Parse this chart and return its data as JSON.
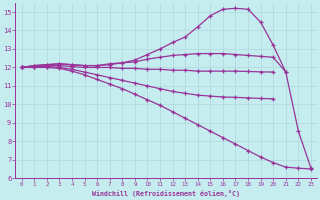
{
  "xlabel": "Windchill (Refroidissement éolien,°C)",
  "xlim": [
    -0.5,
    23.5
  ],
  "ylim": [
    6,
    15.5
  ],
  "xticks": [
    0,
    1,
    2,
    3,
    4,
    5,
    6,
    7,
    8,
    9,
    10,
    11,
    12,
    13,
    14,
    15,
    16,
    17,
    18,
    19,
    20,
    21,
    22,
    23
  ],
  "yticks": [
    6,
    7,
    8,
    9,
    10,
    11,
    12,
    13,
    14,
    15
  ],
  "background_color": "#c5edf0",
  "line_color": "#993399",
  "grid_color": "#b0d8dc",
  "lines": [
    {
      "x": [
        0,
        1,
        2,
        3,
        4,
        5,
        6,
        7,
        8,
        9,
        10,
        11,
        12,
        13,
        14,
        15,
        16,
        17,
        18,
        19,
        20,
        21,
        22,
        23
      ],
      "y": [
        12.0,
        12.1,
        12.15,
        12.2,
        12.15,
        12.1,
        12.1,
        12.15,
        12.25,
        12.4,
        12.7,
        13.0,
        13.35,
        13.65,
        14.2,
        14.8,
        15.15,
        15.2,
        15.15,
        14.45,
        13.2,
        11.75,
        8.55,
        6.55
      ]
    },
    {
      "x": [
        0,
        1,
        2,
        3,
        4,
        5,
        6,
        7,
        8,
        9,
        10,
        11,
        12,
        13,
        14,
        15,
        16,
        17,
        18,
        19,
        20,
        21
      ],
      "y": [
        12.0,
        12.1,
        12.15,
        12.2,
        12.15,
        12.1,
        12.1,
        12.2,
        12.25,
        12.3,
        12.45,
        12.55,
        12.65,
        12.7,
        12.75,
        12.75,
        12.75,
        12.7,
        12.65,
        12.6,
        12.55,
        11.75
      ]
    },
    {
      "x": [
        0,
        1,
        2,
        3,
        4,
        5,
        6,
        7,
        8,
        9,
        10,
        11,
        12,
        13,
        14,
        15,
        16,
        17,
        18,
        19,
        20
      ],
      "y": [
        12.0,
        12.05,
        12.1,
        12.1,
        12.05,
        12.0,
        12.0,
        12.0,
        11.95,
        11.95,
        11.9,
        11.9,
        11.85,
        11.85,
        11.8,
        11.8,
        11.8,
        11.8,
        11.78,
        11.76,
        11.75
      ]
    },
    {
      "x": [
        0,
        1,
        2,
        3,
        4,
        5,
        6,
        7,
        8,
        9,
        10,
        11,
        12,
        13,
        14,
        15,
        16,
        17,
        18,
        19,
        20
      ],
      "y": [
        12.0,
        12.05,
        12.05,
        12.0,
        11.9,
        11.75,
        11.6,
        11.45,
        11.3,
        11.15,
        11.0,
        10.85,
        10.7,
        10.6,
        10.5,
        10.45,
        10.4,
        10.38,
        10.35,
        10.32,
        10.3
      ]
    },
    {
      "x": [
        0,
        1,
        2,
        3,
        4,
        5,
        6,
        7,
        8,
        9,
        10,
        11,
        12,
        13,
        14,
        15,
        16,
        17,
        18,
        19,
        20,
        21,
        22,
        23
      ],
      "y": [
        12.0,
        12.0,
        12.0,
        11.95,
        11.8,
        11.6,
        11.35,
        11.1,
        10.85,
        10.55,
        10.25,
        9.95,
        9.6,
        9.25,
        8.9,
        8.55,
        8.2,
        7.85,
        7.5,
        7.15,
        6.85,
        6.6,
        6.55,
        6.5
      ]
    }
  ]
}
